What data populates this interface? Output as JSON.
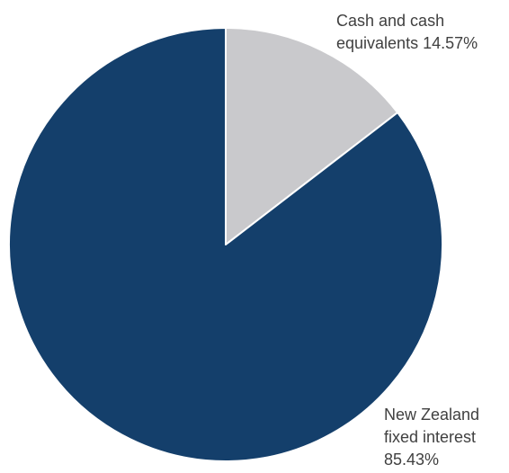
{
  "chart_data": {
    "type": "pie",
    "title": "",
    "start_angle_deg": 0,
    "direction": "clockwise",
    "slices": [
      {
        "label_lines": [
          "Cash and cash",
          "equivalents 14.57%"
        ],
        "value": 14.57,
        "color": "#c9c9cc"
      },
      {
        "label_lines": [
          "New Zealand",
          "fixed interest",
          "85.43%"
        ],
        "value": 85.43,
        "color": "#143f6b"
      }
    ],
    "legend": "none",
    "slice_border_color": "#ffffff"
  }
}
